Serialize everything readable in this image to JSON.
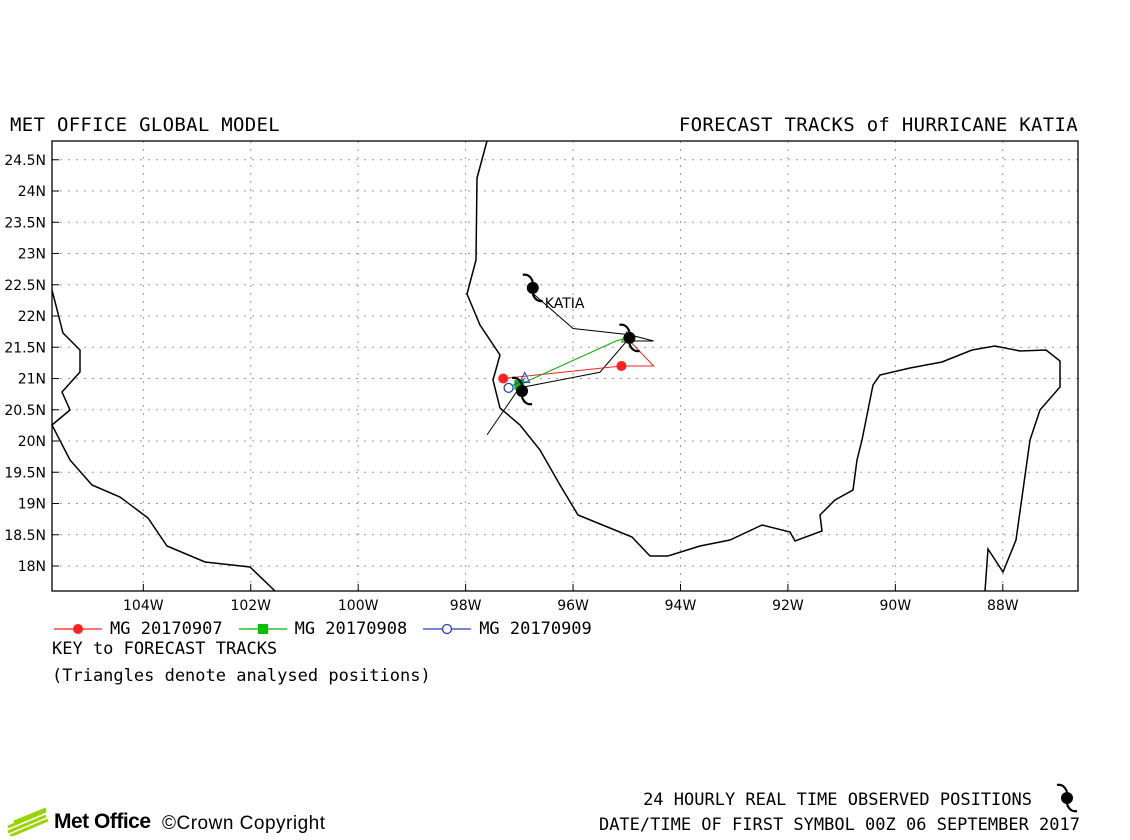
{
  "header": {
    "left_title": "MET OFFICE GLOBAL MODEL",
    "right_title": "FORECAST TRACKS of HURRICANE KATIA"
  },
  "map": {
    "lat_labels": [
      "24.5N",
      "24N",
      "23.5N",
      "23N",
      "22.5N",
      "22N",
      "21.5N",
      "21N",
      "20.5N",
      "20N",
      "19.5N",
      "19N",
      "18.5N",
      "18N"
    ],
    "lon_labels": [
      "104W",
      "102W",
      "100W",
      "98W",
      "96W",
      "94W",
      "92W",
      "90W",
      "88W"
    ],
    "storm_label": "KATIA",
    "colors": {
      "run1": "#ff2020",
      "run2": "#00b000",
      "run3": "#2040c0",
      "observed": "#000000",
      "coast": "#000000",
      "grid": "#888888"
    }
  },
  "chart_data": {
    "type": "map",
    "lat_range": [
      17.6,
      24.8
    ],
    "lon_range": [
      -105.7,
      -86.6
    ],
    "series": [
      {
        "name": "MG 20170907",
        "marker": "circle-filled",
        "color": "#ff2020",
        "points": [
          [
            -95.0,
            21.65
          ],
          [
            -94.5,
            21.2
          ],
          [
            -95.1,
            21.2
          ],
          [
            -97.3,
            21.0
          ]
        ]
      },
      {
        "name": "MG 20170908",
        "marker": "square-filled",
        "color": "#00b000",
        "points": [
          [
            -95.0,
            21.65
          ],
          [
            -95.2,
            21.6
          ],
          [
            -97.0,
            20.9
          ]
        ]
      },
      {
        "name": "MG 20170909",
        "marker": "circle-open",
        "color": "#2040c0",
        "points": [
          [
            -96.9,
            21.0
          ],
          [
            -97.2,
            20.85
          ]
        ]
      }
    ],
    "observed_track": [
      [
        -96.8,
        22.4
      ],
      [
        -96.0,
        21.8
      ],
      [
        -94.95,
        21.7
      ],
      [
        -94.5,
        21.6
      ],
      [
        -95.0,
        21.6
      ],
      [
        -95.5,
        21.1
      ],
      [
        -97.0,
        20.85
      ],
      [
        -97.6,
        20.1
      ]
    ],
    "observed_symbols": [
      [
        -96.75,
        22.45
      ],
      [
        -94.95,
        21.65
      ],
      [
        -96.95,
        20.8
      ]
    ]
  },
  "legend": {
    "items": [
      {
        "label": "MG 20170907",
        "color": "#ff2020",
        "marker": "circle-filled"
      },
      {
        "label": "MG 20170908",
        "color": "#00b000",
        "marker": "square-filled"
      },
      {
        "label": "MG 20170909",
        "color": "#2040c0",
        "marker": "circle-open"
      }
    ],
    "key_title": "KEY to FORECAST TRACKS",
    "key_note": "(Triangles denote analysed positions)"
  },
  "footer": {
    "logo_text": "Met Office",
    "copyright": "©Crown Copyright",
    "observed_line": "24 HOURLY REAL TIME OBSERVED POSITIONS",
    "date_line": "DATE/TIME OF FIRST SYMBOL 00Z 06 SEPTEMBER 2017"
  }
}
